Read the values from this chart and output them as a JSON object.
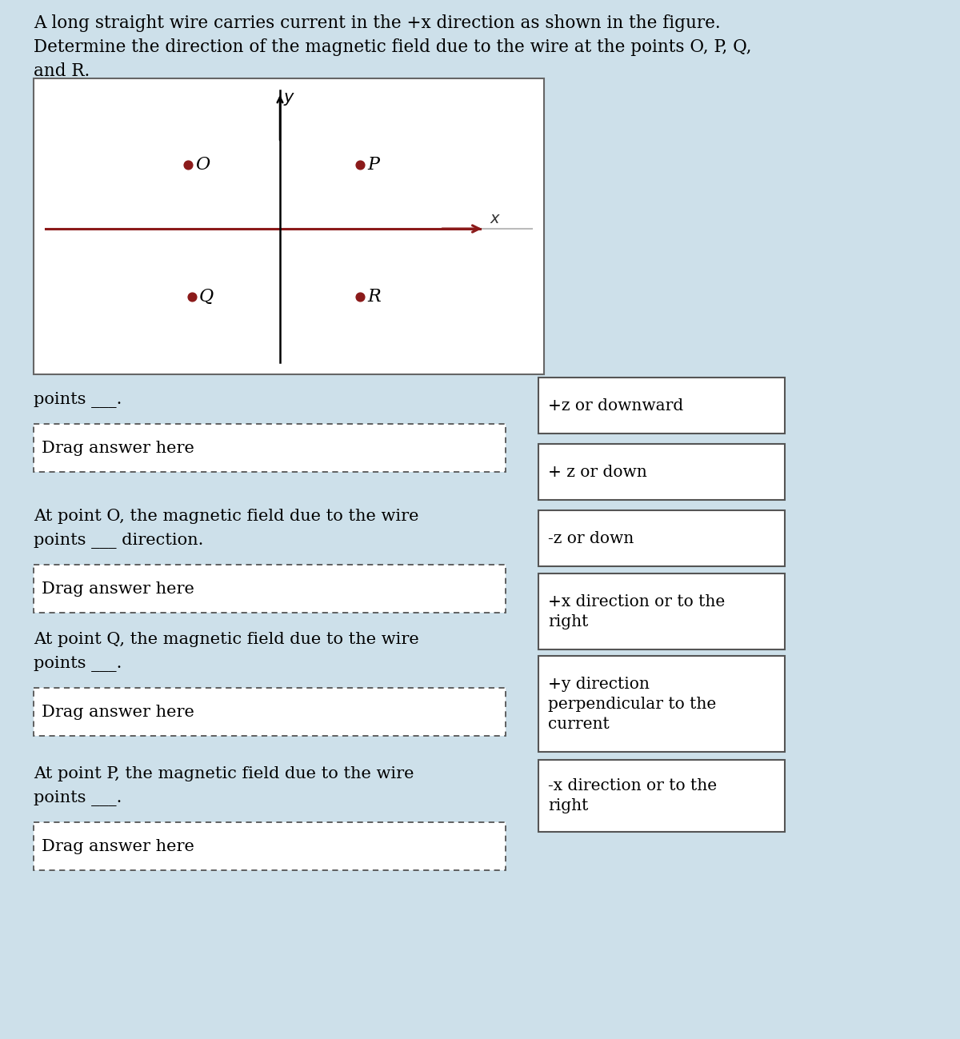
{
  "bg_color": "#cde0ea",
  "white": "#ffffff",
  "title_lines": [
    "A long straight wire carries current in the +x direction as shown in the figure.",
    "Determine the direction of the magnetic field due to the wire at the points O, P, Q,",
    "and R."
  ],
  "diagram_bg": "#ffffff",
  "wire_color": "#8b1a1a",
  "axis_color": "#000000",
  "dot_color": "#8b1a1a",
  "question_blocks": [
    {
      "text_lines": [
        "points ___."
      ],
      "box_label": "Drag answer here"
    },
    {
      "text_lines": [
        "At point O, the magnetic field due to the wire",
        "points ___ direction."
      ],
      "box_label": "Drag answer here"
    },
    {
      "text_lines": [
        "At point Q, the magnetic field due to the wire",
        "points ___."
      ],
      "box_label": "Drag answer here"
    },
    {
      "text_lines": [
        "At point P, the magnetic field due to the wire",
        "points ___."
      ],
      "box_label": "Drag answer here"
    }
  ],
  "answer_boxes": [
    [
      "+z or downward"
    ],
    [
      "+ z or down"
    ],
    [
      "-z or down"
    ],
    [
      "+x direction or to the",
      "right"
    ],
    [
      "+y direction",
      "perpendicular to the",
      "current"
    ],
    [
      "-x direction or to the",
      "right"
    ]
  ],
  "font_size_title": 15.5,
  "font_size_body": 15.0,
  "font_size_diagram": 14.0,
  "font_size_answer": 14.5
}
